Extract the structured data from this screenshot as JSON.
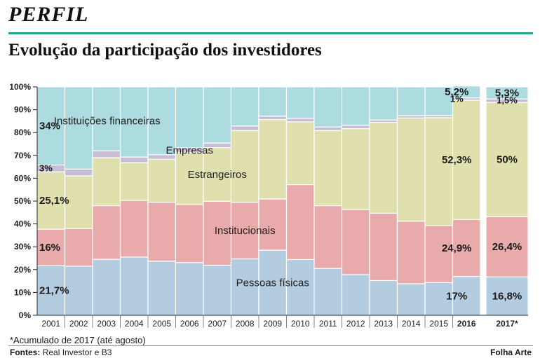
{
  "header": {
    "kicker": "PERFIL",
    "title": "Evolução da participação dos investidores"
  },
  "footer": {
    "note": "*Acumulado de 2017 (até agosto)",
    "sources_label": "Fontes:",
    "sources_text": "Real Investor e B3",
    "credit": "Folha Arte"
  },
  "colors": {
    "pessoas_fisicas": "#b3cce0",
    "institucionais": "#e8aaaa",
    "estrangeiros": "#dfe0ad",
    "empresas": "#c5bed4",
    "instituicoes_financeiras": "#acdbe0"
  },
  "chart_data": {
    "type": "bar",
    "stacked": true,
    "categories": [
      "2001",
      "2002",
      "2003",
      "2004",
      "2005",
      "2006",
      "2007",
      "2008",
      "2009",
      "2010",
      "2011",
      "2012",
      "2013",
      "2014",
      "2015",
      "2016",
      "2017*"
    ],
    "bold_categories": [
      "2016",
      "2017*"
    ],
    "ylim": [
      0,
      100
    ],
    "yticks": [
      "0%",
      "10%",
      "20%",
      "30%",
      "40%",
      "50%",
      "60%",
      "70%",
      "80%",
      "90%",
      "100%"
    ],
    "grid": false,
    "series": [
      {
        "name": "Pessoas físicas",
        "key": "pessoas_fisicas",
        "values": [
          21.7,
          21.5,
          24.5,
          25.5,
          23.7,
          23.1,
          21.9,
          24.7,
          28.5,
          24.4,
          20.5,
          17.8,
          15.2,
          13.8,
          14.3,
          17,
          16.8
        ]
      },
      {
        "name": "Institucionais",
        "key": "institucionais",
        "values": [
          16,
          16.5,
          23.5,
          24.8,
          25.8,
          25.4,
          28,
          24.8,
          22.4,
          32.8,
          27.5,
          28.5,
          29.5,
          27.4,
          25,
          24.9,
          26.4
        ]
      },
      {
        "name": "Estrangeiros",
        "key": "estrangeiros",
        "values": [
          25.1,
          23,
          21,
          16.5,
          18.8,
          22.8,
          23.5,
          31.4,
          34.8,
          27.5,
          32.9,
          35.4,
          39.8,
          45.2,
          47.2,
          52.3,
          50
        ]
      },
      {
        "name": "Empresas",
        "key": "empresas",
        "values": [
          3,
          3,
          3,
          2.5,
          2,
          2,
          2,
          2,
          1.5,
          1.5,
          1.5,
          1.5,
          1,
          1,
          1,
          1,
          1.5
        ]
      },
      {
        "name": "Instituições financeiras",
        "key": "instituicoes_financeiras",
        "values": [
          34.2,
          36,
          28,
          30.7,
          29.7,
          26.7,
          24.6,
          17.1,
          12.8,
          13.8,
          17.6,
          16.8,
          14.5,
          12.6,
          12.5,
          5.2,
          5.3
        ]
      }
    ],
    "series_labels": [
      "Instituições financeiras",
      "Empresas",
      "Estrangeiros",
      "Institucionais",
      "Pessoas físicas"
    ],
    "data_labels": [
      {
        "category": "2001",
        "series": "Pessoas físicas",
        "text": "21,7%"
      },
      {
        "category": "2001",
        "series": "Institucionais",
        "text": "16%"
      },
      {
        "category": "2001",
        "series": "Estrangeiros",
        "text": "25,1%"
      },
      {
        "category": "2001",
        "series": "Empresas",
        "text": "3%"
      },
      {
        "category": "2001",
        "series": "Instituições financeiras",
        "text": "34%"
      },
      {
        "category": "2016",
        "series": "Pessoas físicas",
        "text": "17%"
      },
      {
        "category": "2016",
        "series": "Institucionais",
        "text": "24,9%"
      },
      {
        "category": "2016",
        "series": "Estrangeiros",
        "text": "52,3%"
      },
      {
        "category": "2016",
        "series": "Empresas",
        "text": "1%"
      },
      {
        "category": "2016",
        "series": "Instituições financeiras",
        "text": "5,2%"
      },
      {
        "category": "2017*",
        "series": "Pessoas físicas",
        "text": "16,8%"
      },
      {
        "category": "2017*",
        "series": "Institucionais",
        "text": "26,4%"
      },
      {
        "category": "2017*",
        "series": "Estrangeiros",
        "text": "50%"
      },
      {
        "category": "2017*",
        "series": "Empresas",
        "text": "1,5%"
      },
      {
        "category": "2017*",
        "series": "Instituições financeiras",
        "text": "5,3%"
      }
    ]
  }
}
